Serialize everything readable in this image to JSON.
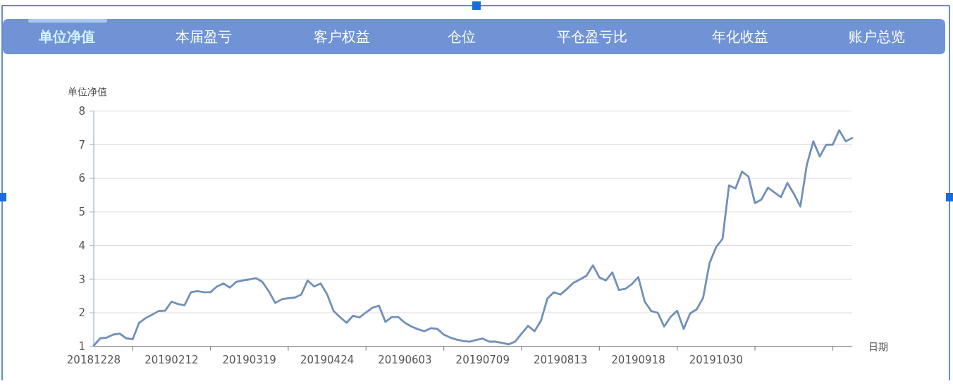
{
  "chart_data": {
    "type": "line",
    "ylabel": "单位净值",
    "xlabel": "日期",
    "annotations": [
      "单位净值",
      "本届盈亏",
      "客户权益",
      "仓位",
      "平仓盈亏比",
      "年化收益",
      "账户总览"
    ],
    "categories": [
      "20181228",
      null,
      null,
      null,
      null,
      null,
      null,
      null,
      null,
      null,
      null,
      null,
      "20190212",
      null,
      null,
      null,
      null,
      null,
      null,
      null,
      null,
      null,
      null,
      null,
      "20190319",
      null,
      null,
      null,
      null,
      null,
      null,
      null,
      null,
      null,
      null,
      null,
      "20190424",
      null,
      null,
      null,
      null,
      null,
      null,
      null,
      null,
      null,
      null,
      null,
      "20190603",
      null,
      null,
      null,
      null,
      null,
      null,
      null,
      null,
      null,
      null,
      null,
      "20190709",
      null,
      null,
      null,
      null,
      null,
      null,
      null,
      null,
      null,
      null,
      null,
      "20190813",
      null,
      null,
      null,
      null,
      null,
      null,
      null,
      null,
      null,
      null,
      null,
      "20190918",
      null,
      null,
      null,
      null,
      null,
      null,
      null,
      null,
      null,
      null,
      null,
      "20191030",
      null,
      null,
      null,
      null,
      null,
      null,
      null,
      null,
      null,
      null,
      null,
      null,
      null,
      null,
      null,
      null,
      null,
      null,
      null,
      null,
      null
    ],
    "values": [
      1.02,
      1.24,
      1.26,
      1.35,
      1.38,
      1.24,
      1.21,
      1.7,
      1.84,
      1.94,
      2.05,
      2.06,
      2.33,
      2.26,
      2.22,
      2.61,
      2.64,
      2.61,
      2.61,
      2.78,
      2.87,
      2.75,
      2.92,
      2.96,
      2.99,
      3.03,
      2.92,
      2.64,
      2.29,
      2.4,
      2.43,
      2.45,
      2.54,
      2.96,
      2.78,
      2.87,
      2.55,
      2.05,
      1.87,
      1.7,
      1.91,
      1.86,
      2.01,
      2.15,
      2.21,
      1.73,
      1.87,
      1.87,
      1.7,
      1.59,
      1.51,
      1.45,
      1.54,
      1.52,
      1.35,
      1.26,
      1.2,
      1.16,
      1.14,
      1.19,
      1.23,
      1.14,
      1.14,
      1.1,
      1.06,
      1.14,
      1.38,
      1.61,
      1.45,
      1.77,
      2.43,
      2.61,
      2.54,
      2.71,
      2.89,
      2.99,
      3.1,
      3.41,
      3.05,
      2.96,
      3.2,
      2.68,
      2.71,
      2.85,
      3.06,
      2.33,
      2.05,
      2.0,
      1.59,
      1.88,
      2.06,
      1.52,
      1.98,
      2.1,
      2.44,
      3.48,
      3.95,
      4.2,
      5.79,
      5.7,
      6.2,
      6.05,
      5.26,
      5.37,
      5.72,
      5.58,
      5.44,
      5.86,
      5.54,
      5.16,
      6.4,
      7.1,
      6.65,
      7.0,
      7.0,
      7.43,
      7.1,
      7.2
    ],
    "color": "#7090b8",
    "ylim": [
      1,
      8
    ],
    "yticks": [
      1,
      2,
      3,
      4,
      5,
      6,
      7,
      8
    ],
    "grid": "y"
  }
}
